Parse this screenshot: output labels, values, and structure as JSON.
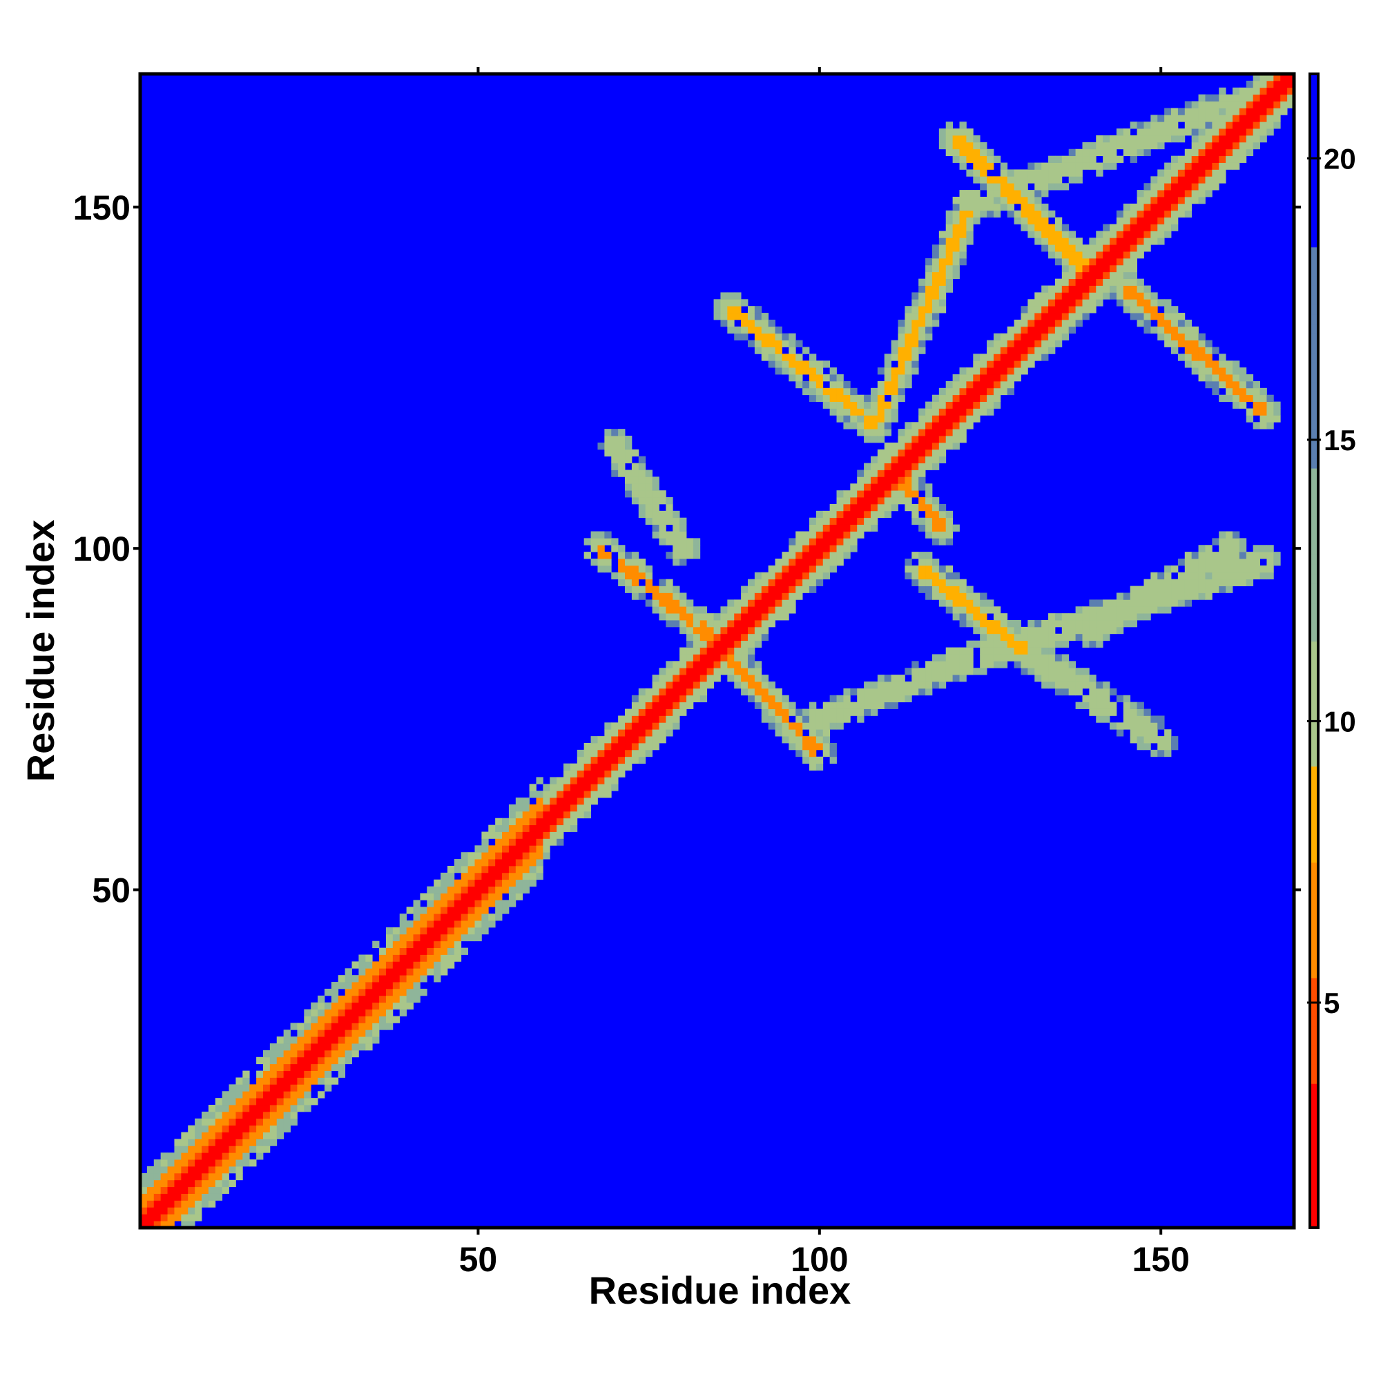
{
  "chart_data": {
    "type": "heatmap",
    "title": "",
    "xlabel": "Residue index",
    "ylabel": "Residue index",
    "xlim": [
      1,
      169
    ],
    "ylim": [
      1,
      169
    ],
    "x_ticks": [
      50,
      100,
      150
    ],
    "y_ticks": [
      50,
      100,
      150
    ],
    "x_tick_labels": [
      "50",
      "100",
      "150"
    ],
    "y_tick_labels": [
      "50",
      "100",
      "150"
    ],
    "colorbar": {
      "range": [
        1,
        21.5
      ],
      "ticks": [
        5,
        10,
        15,
        20
      ],
      "tick_labels": [
        "5",
        "10",
        "15",
        "20"
      ],
      "colors": [
        "#ff0000",
        "#ff8c00",
        "#9cc28c",
        "#5577aa",
        "#0000ff"
      ]
    },
    "matrix_description_free": true,
    "features": {
      "diagonal": {
        "start": 1,
        "end": 169,
        "width": 2.2
      },
      "contact_bands": [
        {
          "center": [
            100,
            70
          ],
          "to": [
            83,
            88
          ],
          "width": 2.4,
          "value": 7
        },
        {
          "center": [
            83,
            88
          ],
          "to": [
            68,
            100
          ],
          "width": 2.4,
          "value": 7
        },
        {
          "center": [
            150,
            72
          ],
          "to": [
            130,
            85
          ],
          "width": 2.6,
          "value": 11
        },
        {
          "center": [
            130,
            85
          ],
          "to": [
            115,
            97
          ],
          "width": 2.6,
          "value": 9
        },
        {
          "center": [
            160,
            100
          ],
          "to": [
            140,
            88
          ],
          "width": 2.4,
          "value": 11
        },
        {
          "center": [
            118,
            103
          ],
          "to": [
            112,
            110
          ],
          "width": 2.4,
          "value": 7
        },
        {
          "center": [
            108,
            118
          ],
          "to": [
            87,
            135
          ],
          "width": 2.6,
          "value": 9
        },
        {
          "center": [
            165,
            120
          ],
          "to": [
            145,
            138
          ],
          "width": 2.6,
          "value": 7
        },
        {
          "center": [
            140,
            140
          ],
          "to": [
            120,
            160
          ],
          "width": 2.6,
          "value": 8
        },
        {
          "center": [
            108,
            118
          ],
          "to": [
            122,
            150
          ],
          "width": 2.4,
          "value": 9
        },
        {
          "center": [
            122,
            150
          ],
          "to": [
            160,
            165
          ],
          "width": 2.4,
          "value": 10
        },
        {
          "center": [
            100,
            75
          ],
          "to": [
            120,
            83
          ],
          "width": 2.4,
          "value": 10
        },
        {
          "center": [
            120,
            83
          ],
          "to": [
            165,
            98
          ],
          "width": 2.4,
          "value": 11
        },
        {
          "center": [
            80,
            100
          ],
          "to": [
            70,
            115
          ],
          "width": 2.4,
          "value": 11
        }
      ]
    }
  }
}
